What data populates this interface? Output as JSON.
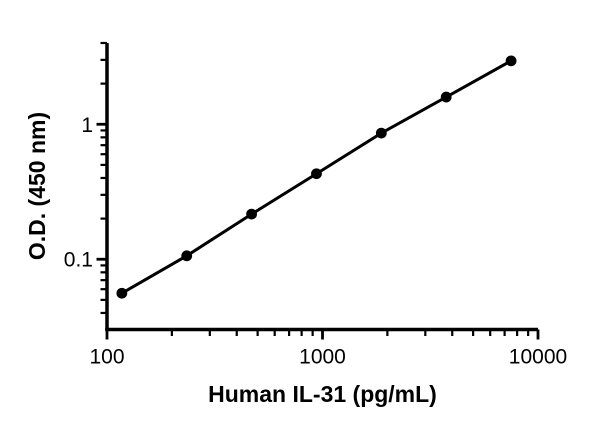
{
  "figure": {
    "background_color": "#ffffff",
    "ink_color": "#000000"
  },
  "chart_data": {
    "type": "scatter",
    "xlabel": "Human IL-31 (pg/mL)",
    "ylabel": "O.D. (450 nm)",
    "x_scale": "log",
    "y_scale": "log",
    "x_range": [
      100,
      10000
    ],
    "y_range": [
      0.0294,
      4
    ],
    "grid": false,
    "legend": false,
    "x_major_ticks": [
      {
        "value": 100,
        "label": "100"
      },
      {
        "value": 1000,
        "label": "1000"
      },
      {
        "value": 10000,
        "label": "10000"
      }
    ],
    "x_minor_ticks": [
      200,
      300,
      400,
      500,
      600,
      700,
      800,
      900,
      2000,
      3000,
      4000,
      5000,
      6000,
      7000,
      8000,
      9000
    ],
    "y_major_ticks": [
      {
        "value": 1,
        "label": "1"
      },
      {
        "value": 0.1,
        "label": "0.1"
      }
    ],
    "y_minor_ticks": [
      0.04,
      0.05,
      0.06,
      0.07,
      0.08,
      0.09,
      0.2,
      0.3,
      0.4,
      0.5,
      0.6,
      0.7,
      0.8,
      0.9,
      2,
      3,
      4
    ],
    "series": [
      {
        "name": "standard-curve",
        "marker": "filled-circle",
        "color": "#000000",
        "points": [
          {
            "x": 117.2,
            "y": 0.056
          },
          {
            "x": 234.4,
            "y": 0.106
          },
          {
            "x": 468.8,
            "y": 0.216
          },
          {
            "x": 937.5,
            "y": 0.43
          },
          {
            "x": 1875,
            "y": 0.86
          },
          {
            "x": 3750,
            "y": 1.59
          },
          {
            "x": 7500,
            "y": 2.95
          }
        ]
      }
    ]
  }
}
